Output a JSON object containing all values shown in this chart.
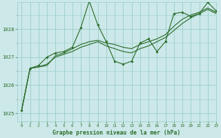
{
  "title": "Graphe pression niveau de la mer (hPa)",
  "bg_color": "#cce8e8",
  "grid_color": "#99cccc",
  "line_color": "#2d6e2d",
  "xlim": [
    -0.5,
    23
  ],
  "ylim": [
    1024.7,
    1028.95
  ],
  "yticks": [
    1025,
    1026,
    1027,
    1028
  ],
  "xticks": [
    0,
    1,
    2,
    3,
    4,
    5,
    6,
    7,
    8,
    9,
    10,
    11,
    12,
    13,
    14,
    15,
    16,
    17,
    18,
    19,
    20,
    21,
    22,
    23
  ],
  "series_jagged": [
    0,
    1025.1,
    1,
    1026.6,
    2,
    1026.7,
    3,
    1027.0,
    4,
    1027.15,
    5,
    1027.2,
    6,
    1027.35,
    7,
    1028.05,
    8,
    1029.0,
    9,
    1028.15,
    10,
    1027.55,
    11,
    1026.85,
    12,
    1026.75,
    13,
    1026.85,
    14,
    1027.5,
    15,
    1027.65,
    16,
    1027.2,
    17,
    1027.55,
    18,
    1028.55,
    19,
    1028.6,
    20,
    1028.45,
    21,
    1028.55,
    22,
    1028.95,
    23,
    1028.65
  ],
  "series_trend1": [
    0,
    1025.1,
    1,
    1026.6,
    2,
    1026.65,
    3,
    1026.7,
    4,
    1027.05,
    5,
    1027.15,
    6,
    1027.3,
    7,
    1027.45,
    8,
    1027.55,
    9,
    1027.6,
    10,
    1027.5,
    11,
    1027.45,
    12,
    1027.35,
    13,
    1027.3,
    14,
    1027.45,
    15,
    1027.55,
    16,
    1027.65,
    17,
    1027.8,
    18,
    1028.1,
    19,
    1028.35,
    20,
    1028.5,
    21,
    1028.6,
    22,
    1028.75,
    23,
    1028.6
  ],
  "series_trend2": [
    0,
    1025.1,
    1,
    1026.6,
    2,
    1026.65,
    3,
    1026.75,
    4,
    1027.0,
    5,
    1027.1,
    6,
    1027.2,
    7,
    1027.35,
    8,
    1027.45,
    9,
    1027.55,
    10,
    1027.4,
    11,
    1027.3,
    12,
    1027.2,
    13,
    1027.15,
    14,
    1027.3,
    15,
    1027.4,
    16,
    1027.55,
    17,
    1027.7,
    18,
    1027.95,
    19,
    1028.2,
    20,
    1028.4,
    21,
    1028.55,
    22,
    1028.7,
    23,
    1028.55
  ]
}
